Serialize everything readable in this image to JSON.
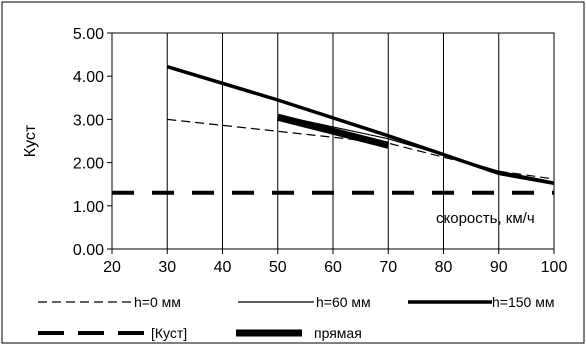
{
  "chart_data": {
    "type": "line",
    "title": "",
    "xlabel": "скорость, км/ч",
    "ylabel": "Куст",
    "xlim": [
      20,
      100
    ],
    "ylim": [
      0,
      5
    ],
    "x_ticks": [
      "20",
      "30",
      "40",
      "50",
      "60",
      "70",
      "80",
      "90",
      "100"
    ],
    "y_ticks": [
      "0.00",
      "1.00",
      "2.00",
      "3.00",
      "4.00",
      "5.00"
    ],
    "grid": "vertical",
    "legend_position": "bottom",
    "series": [
      {
        "name": "h=0 мм",
        "style": "dashed-thin",
        "x": [
          30,
          70,
          90,
          100
        ],
        "y": [
          3.0,
          2.45,
          1.8,
          1.62
        ]
      },
      {
        "name": "h=60 мм",
        "style": "solid-thin",
        "x": [
          50,
          70,
          90,
          100
        ],
        "y": [
          3.1,
          2.55,
          1.8,
          1.55
        ]
      },
      {
        "name": "h=150 мм",
        "style": "solid-thick",
        "x": [
          30,
          50,
          70,
          90,
          100
        ],
        "y": [
          4.22,
          3.45,
          2.62,
          1.75,
          1.52
        ]
      },
      {
        "name": "[Куст]",
        "style": "dashed-thick",
        "x": [
          20,
          100
        ],
        "y": [
          1.3,
          1.3
        ]
      },
      {
        "name": "прямая",
        "style": "solid-heavy",
        "x": [
          50,
          70
        ],
        "y": [
          3.05,
          2.4
        ]
      }
    ]
  }
}
